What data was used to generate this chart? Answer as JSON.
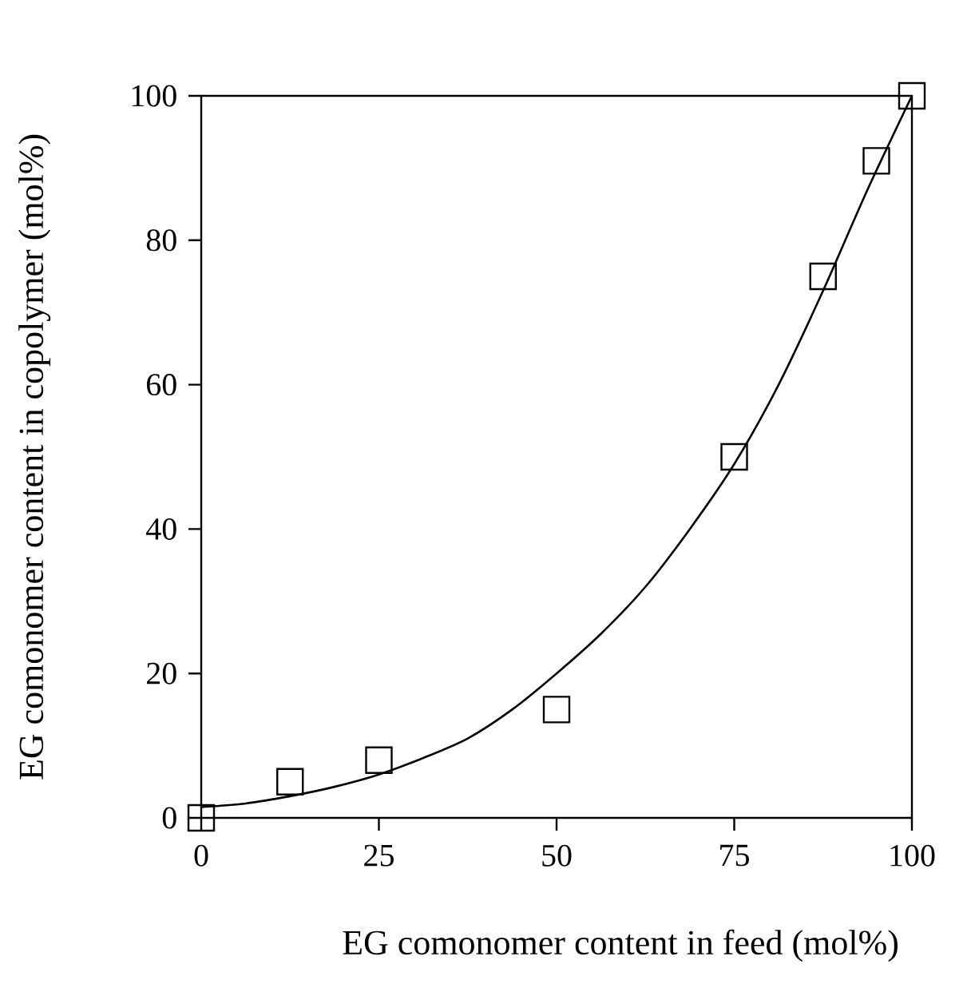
{
  "chart_data": {
    "type": "scatter",
    "xlabel": "EG comonomer content in feed (mol%)",
    "ylabel": "EG comonomer content in copolymer (mol%)",
    "xlim": [
      0,
      100
    ],
    "ylim": [
      0,
      100
    ],
    "xticks": [
      0,
      25,
      50,
      75,
      100
    ],
    "yticks": [
      0,
      20,
      40,
      60,
      80,
      100
    ],
    "legend": false,
    "series": [
      {
        "color": "#000000",
        "marker": "square",
        "x": [
          0,
          12.5,
          25,
          50,
          75,
          87.5,
          95,
          100
        ],
        "values": [
          0,
          5,
          8,
          15,
          50,
          75,
          91,
          100
        ]
      },
      {
        "type": "line",
        "color": "#000000",
        "marker": "none",
        "line_style": "solid",
        "x": [
          0,
          6.25,
          12.5,
          18.75,
          25,
          31.25,
          37.5,
          43.75,
          50,
          56.25,
          62.5,
          68.75,
          75,
          81.25,
          87.5,
          93.75,
          100
        ],
        "values": [
          1.5,
          2,
          3,
          4.3,
          6,
          8.3,
          11,
          15,
          20,
          25.5,
          32,
          40,
          49,
          60,
          73,
          87,
          100
        ]
      }
    ]
  }
}
